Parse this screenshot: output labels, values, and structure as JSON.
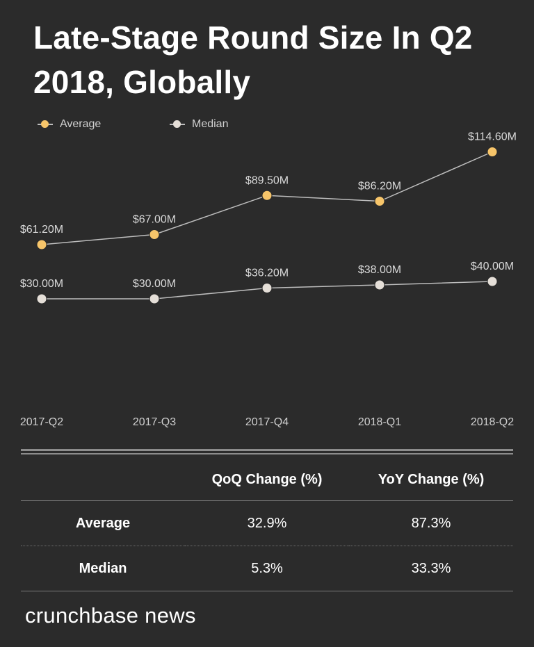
{
  "title": "Late-Stage Round Size In Q2 2018, Globally",
  "legend": {
    "average": {
      "label": "Average",
      "color": "#f7c56a"
    },
    "median": {
      "label": "Median",
      "color": "#e5dfd8"
    }
  },
  "chart_data": {
    "type": "line",
    "title": "Late-Stage Round Size In Q2 2018, Globally",
    "categories": [
      "2017-Q2",
      "2017-Q3",
      "2017-Q4",
      "2018-Q1",
      "2018-Q2"
    ],
    "series": [
      {
        "name": "Average",
        "values": [
          61.2,
          67.0,
          89.5,
          86.2,
          114.6
        ],
        "labels": [
          "$61.20M",
          "$67.00M",
          "$89.50M",
          "$86.20M",
          "$114.60M"
        ],
        "color": "#f7c56a"
      },
      {
        "name": "Median",
        "values": [
          30.0,
          30.0,
          36.2,
          38.0,
          40.0
        ],
        "labels": [
          "$30.00M",
          "$30.00M",
          "$36.20M",
          "$38.00M",
          "$40.00M"
        ],
        "color": "#e5dfd8"
      }
    ],
    "xlabel": "",
    "ylabel": "",
    "grid": false,
    "legend": "top-left"
  },
  "table": {
    "headers": [
      "",
      "QoQ Change (%)",
      "YoY Change (%)"
    ],
    "rows": [
      {
        "label": "Average",
        "qoq": "32.9%",
        "yoy": "87.3%"
      },
      {
        "label": "Median",
        "qoq": "5.3%",
        "yoy": "33.3%"
      }
    ]
  },
  "brand": "crunchbase news"
}
